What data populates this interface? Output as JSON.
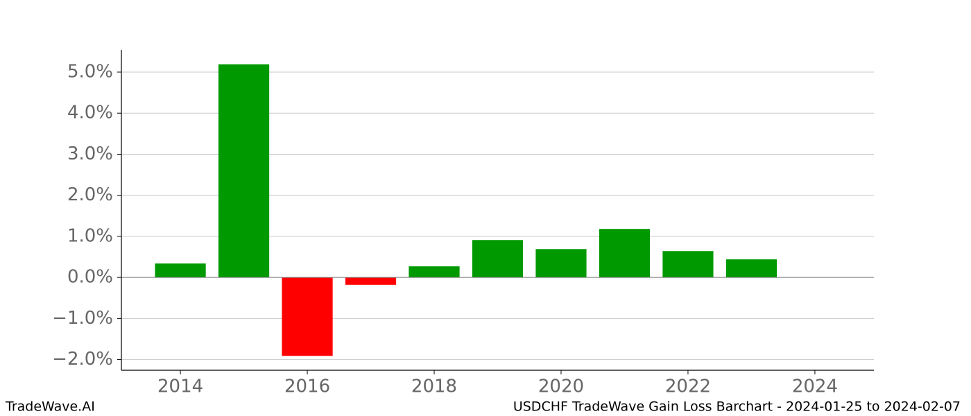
{
  "chart_data": {
    "type": "bar",
    "x": [
      2014,
      2015,
      2016,
      2017,
      2018,
      2019,
      2020,
      2021,
      2022,
      2023
    ],
    "values": [
      0.34,
      5.19,
      -1.91,
      -0.18,
      0.27,
      0.91,
      0.69,
      1.18,
      0.64,
      0.44
    ],
    "positive_color": "#009900",
    "negative_color": "#ff0000",
    "xlim": [
      2013.07,
      2024.93
    ],
    "xticks": [
      2014,
      2016,
      2018,
      2020,
      2022,
      2024
    ],
    "ylim": [
      -2.26,
      5.54
    ],
    "yticks": [
      {
        "value": -2,
        "label": "−2.0%"
      },
      {
        "value": -1,
        "label": "−1.0%"
      },
      {
        "value": 0,
        "label": "0.0%"
      },
      {
        "value": 1,
        "label": "1.0%"
      },
      {
        "value": 2,
        "label": "2.0%"
      },
      {
        "value": 3,
        "label": "3.0%"
      },
      {
        "value": 4,
        "label": "4.0%"
      },
      {
        "value": 5,
        "label": "5.0%"
      }
    ],
    "grid": true,
    "footer_left": "TradeWave.AI",
    "footer_right": "USDCHF TradeWave Gain Loss Barchart - 2024-01-25 to 2024-02-07"
  }
}
